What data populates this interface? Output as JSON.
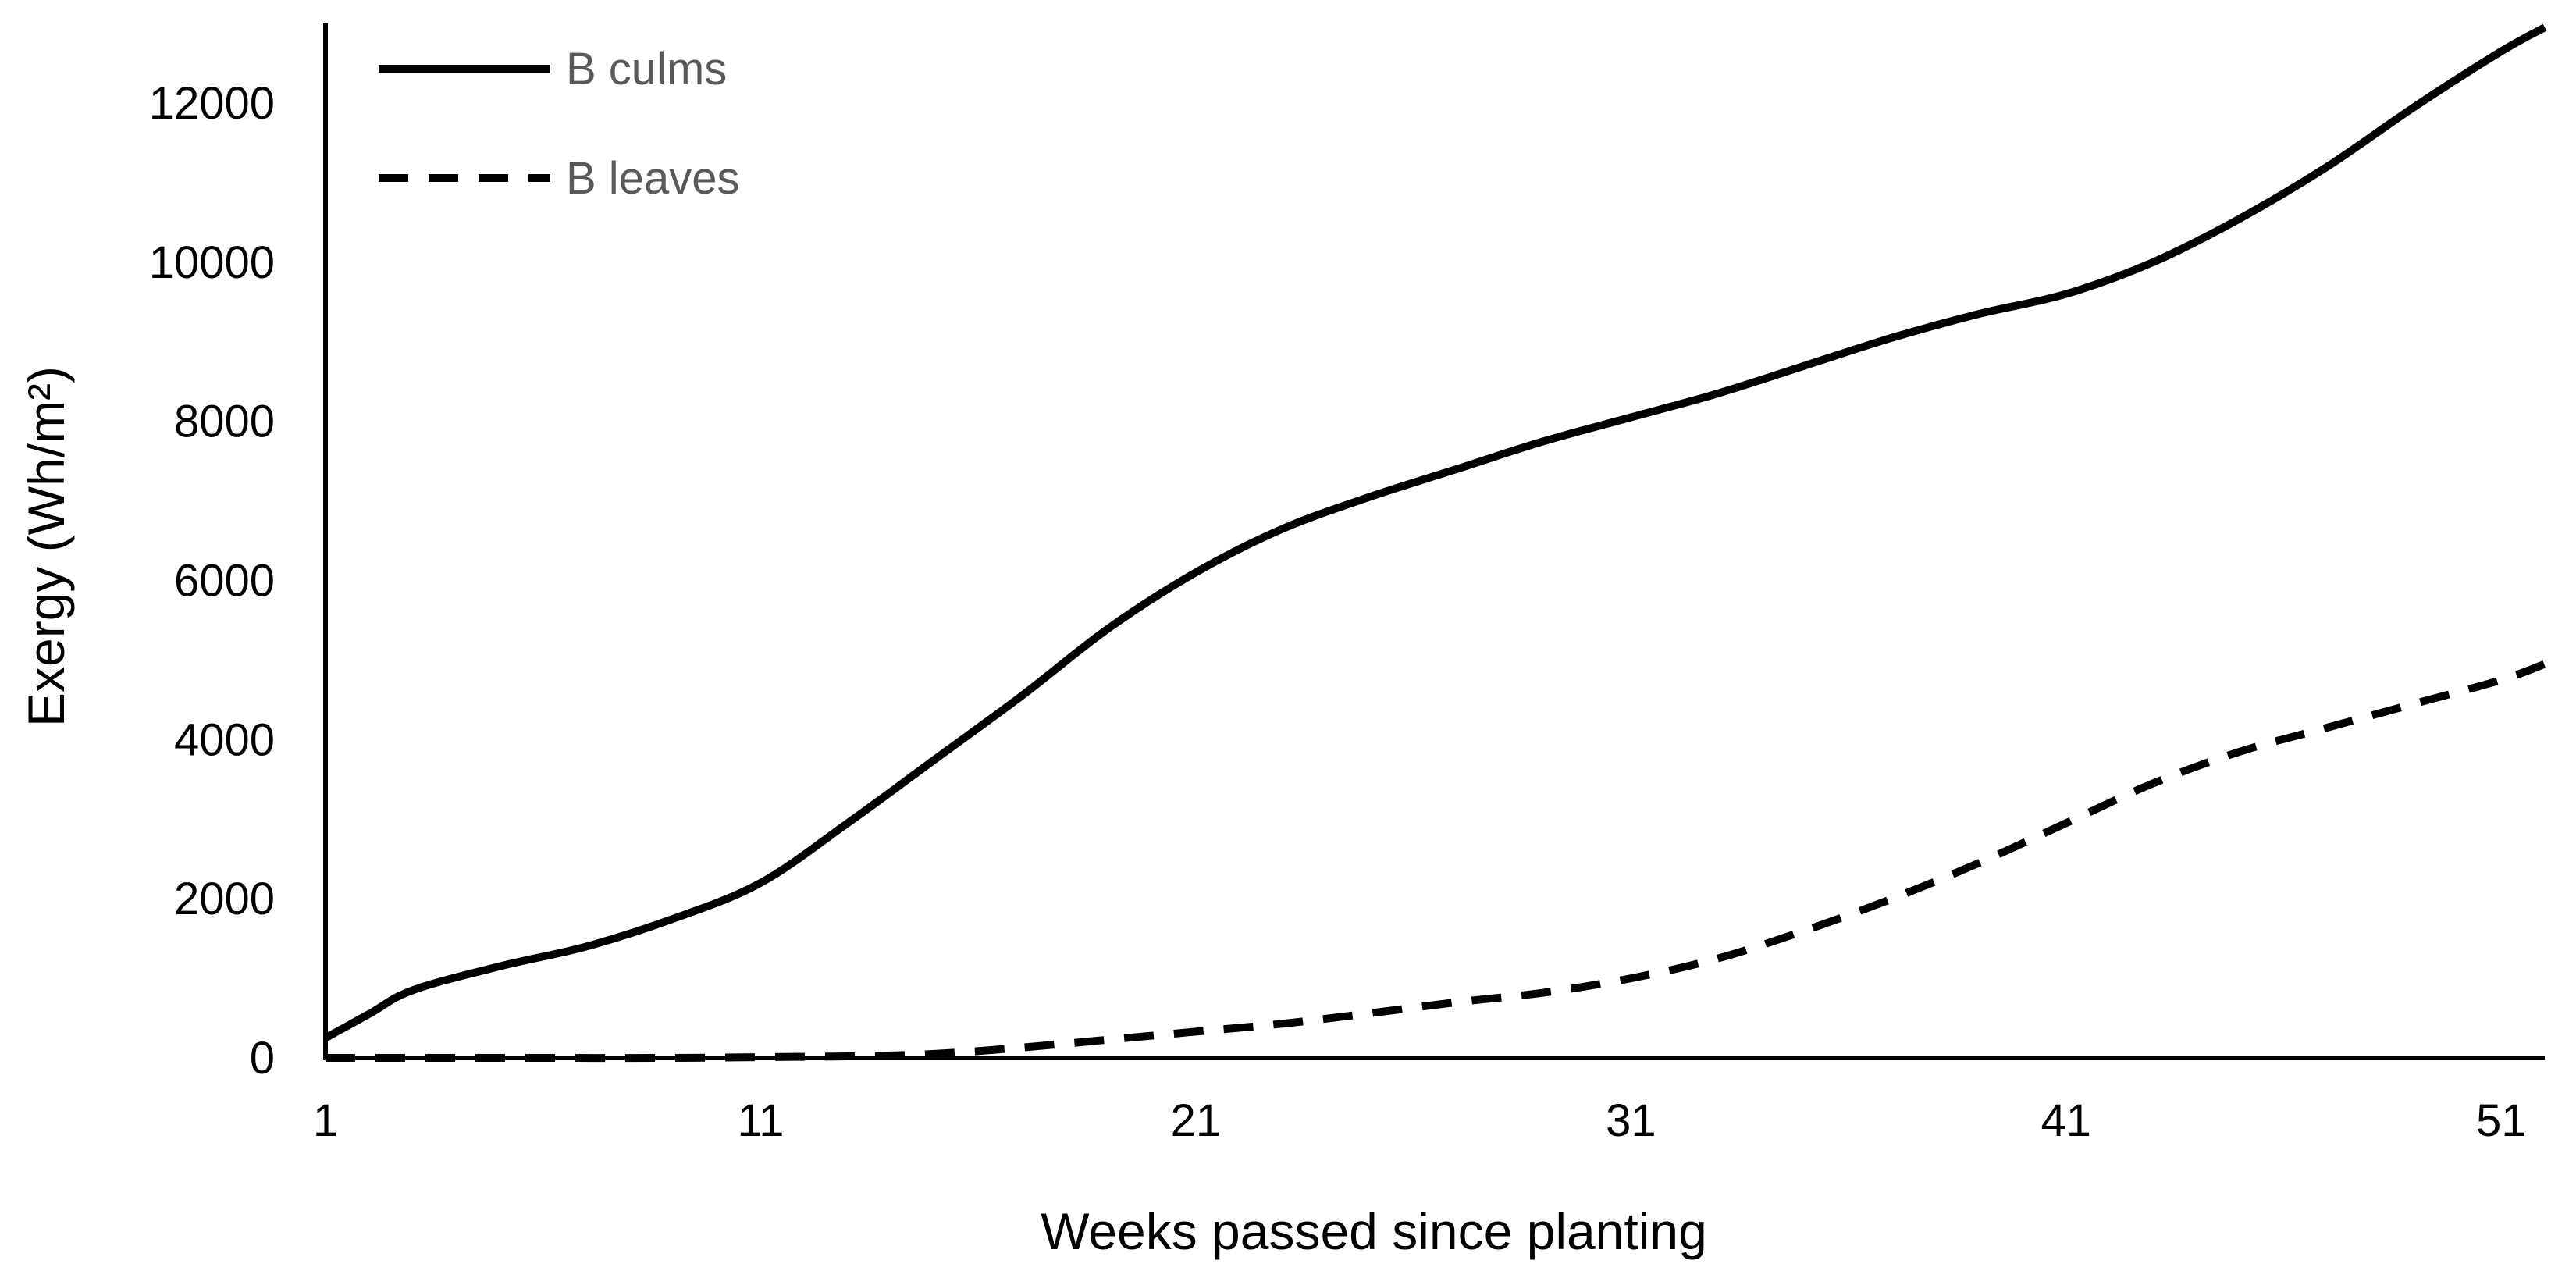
{
  "chart_data": {
    "type": "line",
    "title": "",
    "xlabel": "Weeks passed since planting",
    "ylabel": "Exergy (Wh/m²)",
    "xlim": [
      1,
      52
    ],
    "ylim": [
      0,
      13000
    ],
    "xticks": [
      1,
      11,
      21,
      31,
      41,
      51
    ],
    "yticks": [
      0,
      2000,
      4000,
      6000,
      8000,
      10000,
      12000
    ],
    "grid": false,
    "legend_position": "top-left",
    "series": [
      {
        "name": "B culms",
        "style": "solid",
        "color": "#000000",
        "x": [
          1,
          2,
          3,
          5,
          7,
          9,
          11,
          13,
          15,
          17,
          19,
          21,
          23,
          25,
          27,
          29,
          31,
          33,
          35,
          37,
          39,
          41,
          43,
          45,
          47,
          49,
          51,
          52
        ],
        "y": [
          250,
          550,
          850,
          1150,
          1400,
          1750,
          2200,
          2950,
          3750,
          4550,
          5400,
          6100,
          6650,
          7050,
          7400,
          7750,
          8050,
          8350,
          8700,
          9050,
          9350,
          9600,
          10000,
          10550,
          11200,
          11950,
          12650,
          12950
        ]
      },
      {
        "name": "B leaves",
        "style": "dashed",
        "color": "#000000",
        "x": [
          1,
          5,
          9,
          11,
          13,
          15,
          17,
          19,
          21,
          23,
          25,
          27,
          29,
          31,
          33,
          35,
          37,
          39,
          41,
          43,
          45,
          47,
          49,
          51,
          52
        ],
        "y": [
          0,
          0,
          0,
          10,
          20,
          50,
          130,
          230,
          330,
          430,
          560,
          700,
          820,
          1000,
          1250,
          1600,
          2000,
          2450,
          2950,
          3450,
          3850,
          4150,
          4450,
          4750,
          4950
        ]
      }
    ]
  }
}
